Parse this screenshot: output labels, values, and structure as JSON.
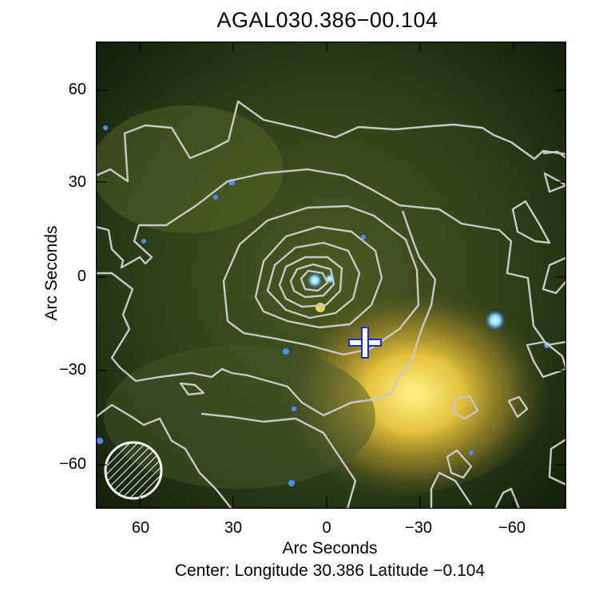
{
  "title": "AGAL030.386−00.104",
  "xlabel": "Arc Seconds",
  "ylabel": "Arc Seconds",
  "center_text": "Center:  Longitude 30.386 Latitude −0.104",
  "x_ticks": [
    "60",
    "30",
    "0",
    "−30",
    "−60"
  ],
  "y_ticks": [
    "60",
    "30",
    "0",
    "−30",
    "−60"
  ],
  "colors": {
    "background": "#1a2b12",
    "emission": "#f3d24a",
    "contour": "#c8c8c8",
    "marker": "#1d2fd0"
  }
}
